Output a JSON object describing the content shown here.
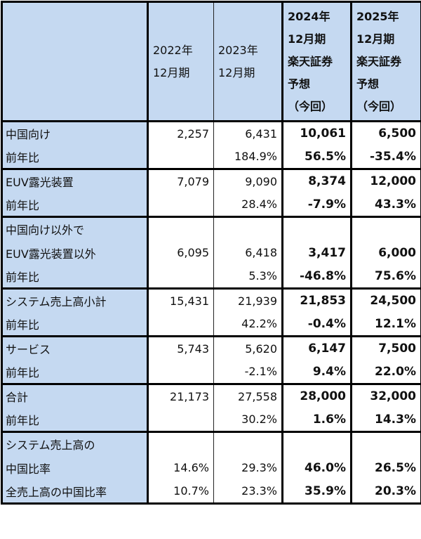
{
  "header": {
    "col_2022": [
      "2022年",
      "12月期"
    ],
    "col_2023": [
      "2023年",
      "12月期"
    ],
    "col_2024": [
      "2024年",
      "12月期",
      "楽天証券",
      "予想",
      "（今回）"
    ],
    "col_2025": [
      "2025年",
      "12月期",
      "楽天証券",
      "予想",
      "（今回）"
    ]
  },
  "rows": [
    {
      "label": "中国向け",
      "v2022": "2,257",
      "v2023": "6,431",
      "v2024": "10,061",
      "v2025": "6,500"
    },
    {
      "label": "前年比",
      "v2022": "",
      "v2023": "184.9%",
      "v2024": "56.5%",
      "v2025": "-35.4%"
    },
    {
      "label": "EUV露光装置",
      "v2022": "7,079",
      "v2023": "9,090",
      "v2024": "8,374",
      "v2025": "12,000"
    },
    {
      "label": "前年比",
      "v2022": "",
      "v2023": "28.4%",
      "v2024": "-7.9%",
      "v2025": "43.3%"
    },
    {
      "label": "中国向け以外で",
      "v2022": "",
      "v2023": "",
      "v2024": "",
      "v2025": ""
    },
    {
      "label": "EUV露光装置以外",
      "v2022": "6,095",
      "v2023": "6,418",
      "v2024": "3,417",
      "v2025": "6,000"
    },
    {
      "label": "前年比",
      "v2022": "",
      "v2023": "5.3%",
      "v2024": "-46.8%",
      "v2025": "75.6%"
    },
    {
      "label": "システム売上高小計",
      "v2022": "15,431",
      "v2023": "21,939",
      "v2024": "21,853",
      "v2025": "24,500"
    },
    {
      "label": "前年比",
      "v2022": "",
      "v2023": "42.2%",
      "v2024": "-0.4%",
      "v2025": "12.1%"
    },
    {
      "label": "サービス",
      "v2022": "5,743",
      "v2023": "5,620",
      "v2024": "6,147",
      "v2025": "7,500"
    },
    {
      "label": "前年比",
      "v2022": "",
      "v2023": "-2.1%",
      "v2024": "9.4%",
      "v2025": "22.0%"
    },
    {
      "label": "合計",
      "v2022": "21,173",
      "v2023": "27,558",
      "v2024": "28,000",
      "v2025": "32,000"
    },
    {
      "label": "前年比",
      "v2022": "",
      "v2023": "30.2%",
      "v2024": "1.6%",
      "v2025": "14.3%"
    },
    {
      "label": "システム売上高の",
      "v2022": "",
      "v2023": "",
      "v2024": "",
      "v2025": ""
    },
    {
      "label": "中国比率",
      "v2022": "14.6%",
      "v2023": "29.3%",
      "v2024": "46.0%",
      "v2025": "26.5%"
    },
    {
      "label": "全売上高の中国比率",
      "v2022": "10.7%",
      "v2023": "23.3%",
      "v2024": "35.9%",
      "v2025": "20.3%"
    }
  ]
}
